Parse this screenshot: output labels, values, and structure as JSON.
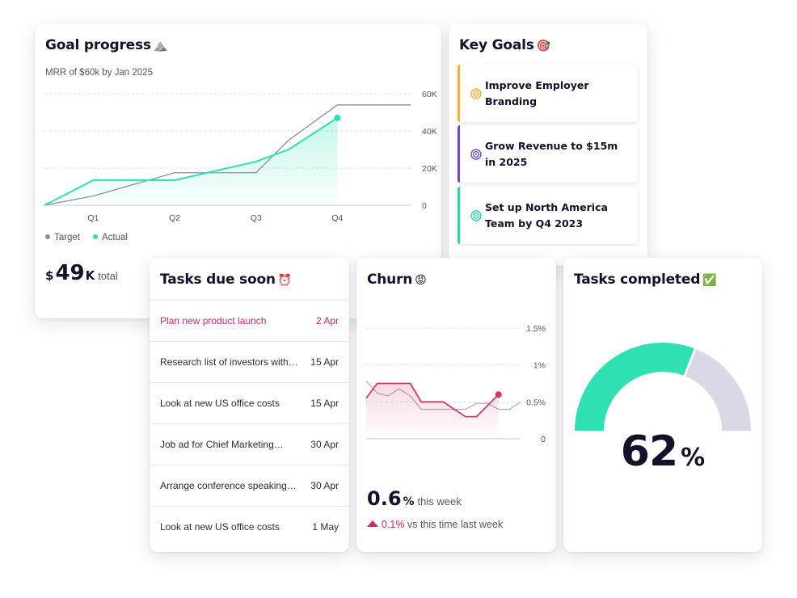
{
  "goal_progress": {
    "title": "Goal progress",
    "title_emoji": "⛰️",
    "subtitle": "MRR of $60k by Jan 2025",
    "legend": {
      "target": "Target",
      "actual": "Actual"
    },
    "total": {
      "currency": "$",
      "value": "49",
      "unit": "K",
      "label": "total"
    }
  },
  "key_goals": {
    "title": "Key Goals",
    "title_emoji": "🎯",
    "items": [
      {
        "text": "Improve Employer Branding",
        "color": "#f2b233",
        "icon": "target-icon"
      },
      {
        "text": "Grow Revenue to $15m in 2025",
        "color": "#6b4bc4",
        "icon": "target-icon"
      },
      {
        "text": "Set up North America Team by Q4 2023",
        "color": "#2dd4a7",
        "icon": "target-icon"
      }
    ]
  },
  "tasks_due": {
    "title": "Tasks due soon",
    "title_emoji": "⏰",
    "rows": [
      {
        "name": "Plan new product launch",
        "date": "2 Apr",
        "overdue": true
      },
      {
        "name": "Research list of investors with…",
        "date": "15 Apr",
        "overdue": false
      },
      {
        "name": "Look at new US office costs",
        "date": "15 Apr",
        "overdue": false
      },
      {
        "name": "Job ad for Chief Marketing…",
        "date": "30 Apr",
        "overdue": false
      },
      {
        "name": "Arrange conference speaking…",
        "date": "30 Apr",
        "overdue": false
      },
      {
        "name": "Look at new US office costs",
        "date": "1 May",
        "overdue": false
      }
    ]
  },
  "churn": {
    "title": "Churn",
    "title_emoji": "😡",
    "value": "0.6",
    "unit": "%",
    "period_label": "this week",
    "delta": "0.1%",
    "delta_label": "vs this time last week"
  },
  "tasks_completed": {
    "title": "Tasks completed",
    "title_emoji": "✅",
    "value": "62",
    "unit": "%",
    "fraction": 0.62
  },
  "colors": {
    "accent": "#2fe0b4",
    "target": "#8d8b9c",
    "churn": "#d9336b",
    "gauge_rest": "#d9d8e6",
    "text": "#13122b"
  },
  "chart_data": [
    {
      "type": "line",
      "chart_name": "goal-progress",
      "x": [
        0,
        0.6,
        1.0,
        1.6,
        2.0,
        2.6,
        3.0,
        3.6,
        4.0,
        4.5
      ],
      "categories": [
        "Q1",
        "Q2",
        "Q3",
        "Q4"
      ],
      "category_positions": [
        0.6,
        1.6,
        2.6,
        3.6
      ],
      "series": [
        {
          "name": "Target",
          "values": [
            0,
            5000,
            10000,
            17500,
            17500,
            17500,
            35000,
            54000,
            54000,
            54000
          ]
        },
        {
          "name": "Actual",
          "values": [
            0,
            13500,
            13500,
            13500,
            17500,
            23500,
            30000,
            47000,
            null,
            null
          ]
        }
      ],
      "ylim": [
        0,
        60000
      ],
      "y_ticks": [
        "60K",
        "40K",
        "20K",
        "0"
      ],
      "y_tick_values": [
        60000,
        40000,
        20000,
        0
      ],
      "grid": true,
      "legend": "bottom-left"
    },
    {
      "type": "line",
      "chart_name": "churn",
      "x": [
        0,
        1,
        2,
        3,
        4,
        5,
        6,
        7,
        8,
        9,
        10,
        11,
        12,
        13,
        14
      ],
      "series": [
        {
          "name": "this week",
          "values": [
            0.55,
            0.75,
            0.75,
            0.75,
            0.75,
            0.5,
            0.5,
            0.5,
            0.4,
            0.3,
            0.3,
            0.45,
            0.6,
            0.6,
            0.6
          ]
        },
        {
          "name": "last week",
          "values": [
            0.78,
            0.62,
            0.58,
            0.68,
            0.58,
            0.4,
            0.4,
            0.4,
            0.4,
            0.4,
            0.48,
            0.48,
            0.4,
            0.4,
            0.5
          ]
        }
      ],
      "ylim": [
        0,
        1.5
      ],
      "y_ticks": [
        "1.5%",
        "1%",
        "0.5%",
        "0"
      ],
      "y_tick_values": [
        1.5,
        1.0,
        0.5,
        0
      ],
      "grid": true
    }
  ]
}
